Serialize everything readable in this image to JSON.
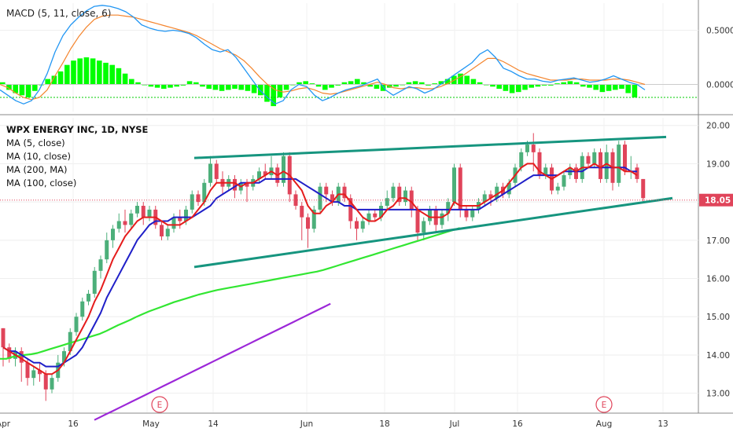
{
  "chart_data": [
    {
      "type": "bar",
      "panel": "macd",
      "legend": "MACD (5, 11, close, 6)",
      "ylim": [
        -0.25,
        0.75
      ],
      "yticks": [
        "0.5000",
        "0.0000"
      ],
      "ytick_values": [
        0.5,
        0.0
      ],
      "signal_level": -0.12,
      "histogram": [
        0.02,
        -0.05,
        -0.08,
        -0.1,
        -0.12,
        -0.06,
        0.0,
        0.05,
        0.08,
        0.12,
        0.18,
        0.22,
        0.24,
        0.25,
        0.24,
        0.22,
        0.2,
        0.18,
        0.15,
        0.1,
        0.05,
        0.02,
        0.0,
        -0.02,
        -0.03,
        -0.04,
        -0.03,
        -0.02,
        -0.01,
        0.03,
        0.02,
        -0.02,
        -0.04,
        -0.05,
        -0.06,
        -0.05,
        -0.04,
        -0.05,
        -0.06,
        -0.08,
        -0.1,
        -0.16,
        -0.2,
        -0.12,
        -0.05,
        0.0,
        0.02,
        0.03,
        0.01,
        -0.02,
        -0.05,
        -0.03,
        -0.01,
        0.02,
        0.03,
        0.05,
        0.02,
        -0.02,
        -0.04,
        -0.06,
        -0.03,
        -0.02,
        0.0,
        0.02,
        0.03,
        0.02,
        -0.01,
        0.01,
        0.03,
        0.05,
        0.08,
        0.1,
        0.08,
        0.05,
        0.02,
        0.0,
        -0.02,
        -0.04,
        -0.06,
        -0.08,
        -0.07,
        -0.05,
        -0.03,
        -0.02,
        -0.01,
        -0.01,
        0.01,
        0.02,
        0.03,
        0.02,
        -0.02,
        -0.03,
        -0.05,
        -0.07,
        -0.06,
        -0.05,
        -0.04,
        -0.08,
        -0.12
      ],
      "macd_line": [
        -0.05,
        -0.1,
        -0.15,
        -0.18,
        -0.15,
        -0.05,
        0.1,
        0.3,
        0.45,
        0.55,
        0.62,
        0.68,
        0.72,
        0.73,
        0.72,
        0.7,
        0.67,
        0.62,
        0.55,
        0.52,
        0.5,
        0.49,
        0.5,
        0.49,
        0.47,
        0.43,
        0.37,
        0.32,
        0.3,
        0.32,
        0.25,
        0.15,
        0.05,
        -0.05,
        -0.12,
        -0.18,
        -0.15,
        -0.05,
        0.0,
        -0.02,
        -0.1,
        -0.15,
        -0.12,
        -0.08,
        -0.05,
        -0.03,
        -0.01,
        0.02,
        0.05,
        -0.05,
        -0.1,
        -0.06,
        -0.02,
        -0.04,
        -0.08,
        -0.05,
        0.0,
        0.05,
        0.1,
        0.15,
        0.2,
        0.28,
        0.32,
        0.25,
        0.15,
        0.12,
        0.08,
        0.05,
        0.05,
        0.03,
        0.02,
        0.04,
        0.05,
        0.06,
        0.04,
        0.02,
        0.03,
        0.05,
        0.08,
        0.05,
        0.02,
        0.0,
        -0.05
      ],
      "signal_line": [
        0.0,
        -0.03,
        -0.08,
        -0.12,
        -0.14,
        -0.12,
        -0.05,
        0.08,
        0.2,
        0.33,
        0.44,
        0.53,
        0.6,
        0.63,
        0.64,
        0.64,
        0.63,
        0.62,
        0.6,
        0.58,
        0.56,
        0.54,
        0.52,
        0.5,
        0.48,
        0.45,
        0.41,
        0.37,
        0.33,
        0.3,
        0.27,
        0.22,
        0.15,
        0.07,
        0.0,
        -0.05,
        -0.07,
        -0.06,
        -0.04,
        -0.03,
        -0.05,
        -0.08,
        -0.09,
        -0.08,
        -0.06,
        -0.04,
        -0.02,
        0.0,
        0.02,
        0.0,
        -0.03,
        -0.04,
        -0.03,
        -0.03,
        -0.04,
        -0.04,
        -0.02,
        0.01,
        0.05,
        0.09,
        0.14,
        0.19,
        0.24,
        0.24,
        0.21,
        0.17,
        0.13,
        0.1,
        0.08,
        0.06,
        0.04,
        0.04,
        0.04,
        0.05,
        0.05,
        0.04,
        0.04,
        0.04,
        0.05,
        0.05,
        0.04,
        0.02,
        0.0
      ]
    },
    {
      "type": "candlestick",
      "panel": "price",
      "title": "WPX ENERGY INC, 1D, NYSE",
      "legend": [
        "MA (5, close)",
        "MA (10, close)",
        "MA (200, MA)",
        "MA (100, close)"
      ],
      "ylim": [
        12.5,
        20.2
      ],
      "yticks": [
        "20.00",
        "19.00",
        "18.00",
        "17.00",
        "16.00",
        "15.00",
        "14.00",
        "13.00"
      ],
      "ytick_values": [
        20,
        19,
        18,
        17,
        16,
        15,
        14,
        13
      ],
      "last_price": "18.05",
      "last_price_value": 18.05,
      "x_labels": [
        "Apr",
        "16",
        "May",
        "14",
        "Jun",
        "18",
        "Jul",
        "16",
        "Aug",
        "13"
      ],
      "events": [
        "E",
        "E"
      ],
      "candles": [
        [
          14.7,
          14.2,
          14.7,
          13.7
        ],
        [
          14.2,
          13.9,
          14.3,
          13.8
        ],
        [
          13.9,
          14.1,
          14.2,
          13.7
        ],
        [
          14.1,
          13.8,
          14.2,
          13.3
        ],
        [
          13.8,
          13.4,
          13.9,
          13.2
        ],
        [
          13.4,
          13.6,
          13.7,
          13.2
        ],
        [
          13.6,
          13.5,
          13.8,
          13.3
        ],
        [
          13.5,
          13.1,
          13.6,
          12.8
        ],
        [
          13.1,
          13.4,
          13.5,
          13.0
        ],
        [
          13.4,
          13.8,
          14.0,
          13.3
        ],
        [
          13.8,
          14.1,
          14.2,
          13.7
        ],
        [
          14.1,
          14.6,
          14.7,
          14.0
        ],
        [
          14.6,
          15.0,
          15.1,
          14.5
        ],
        [
          15.0,
          15.4,
          15.5,
          14.9
        ],
        [
          15.4,
          15.6,
          15.7,
          15.3
        ],
        [
          15.6,
          16.2,
          16.3,
          15.5
        ],
        [
          16.2,
          16.5,
          16.6,
          16.0
        ],
        [
          16.5,
          17.0,
          17.2,
          16.4
        ],
        [
          17.0,
          17.3,
          17.4,
          16.8
        ],
        [
          17.3,
          17.5,
          17.7,
          17.2
        ],
        [
          17.5,
          17.4,
          17.8,
          17.2
        ],
        [
          17.4,
          17.7,
          17.8,
          17.3
        ],
        [
          17.7,
          17.9,
          18.0,
          17.6
        ],
        [
          17.9,
          17.6,
          18.0,
          17.4
        ],
        [
          17.6,
          17.8,
          17.9,
          17.5
        ],
        [
          17.8,
          17.4,
          17.9,
          17.3
        ],
        [
          17.4,
          17.1,
          17.5,
          17.0
        ],
        [
          17.1,
          17.3,
          17.4,
          17.0
        ],
        [
          17.3,
          17.6,
          17.7,
          17.2
        ],
        [
          17.6,
          17.5,
          17.8,
          17.3
        ],
        [
          17.5,
          17.8,
          17.9,
          17.4
        ],
        [
          17.8,
          18.2,
          18.3,
          17.7
        ],
        [
          18.2,
          18.0,
          18.3,
          17.9
        ],
        [
          18.0,
          18.5,
          18.6,
          17.9
        ],
        [
          18.5,
          19.0,
          19.2,
          18.4
        ],
        [
          19.0,
          18.6,
          19.1,
          18.5
        ],
        [
          18.6,
          18.4,
          18.8,
          18.2
        ],
        [
          18.4,
          18.6,
          18.7,
          18.3
        ],
        [
          18.6,
          18.3,
          18.7,
          18.1
        ],
        [
          18.3,
          18.5,
          18.6,
          18.2
        ],
        [
          18.5,
          18.4,
          18.6,
          18.0
        ],
        [
          18.4,
          18.6,
          18.7,
          18.3
        ],
        [
          18.6,
          18.8,
          18.9,
          18.5
        ],
        [
          18.8,
          18.7,
          19.0,
          18.6
        ],
        [
          18.7,
          18.9,
          19.2,
          18.6
        ],
        [
          18.9,
          18.5,
          19.0,
          18.4
        ],
        [
          18.5,
          19.2,
          19.3,
          18.4
        ],
        [
          19.2,
          18.2,
          19.3,
          18.0
        ],
        [
          18.2,
          17.9,
          18.3,
          17.8
        ],
        [
          17.9,
          17.6,
          18.0,
          17.0
        ],
        [
          17.6,
          17.3,
          17.7,
          16.8
        ],
        [
          17.3,
          17.8,
          17.9,
          17.2
        ],
        [
          17.8,
          18.4,
          18.5,
          17.7
        ],
        [
          18.4,
          18.2,
          18.5,
          18.0
        ],
        [
          18.2,
          18.0,
          18.3,
          17.9
        ],
        [
          18.0,
          18.4,
          18.5,
          17.9
        ],
        [
          18.4,
          18.1,
          18.5,
          18.0
        ],
        [
          18.1,
          17.5,
          18.2,
          17.3
        ],
        [
          17.5,
          17.3,
          17.6,
          17.0
        ],
        [
          17.3,
          17.5,
          17.6,
          17.2
        ],
        [
          17.5,
          17.7,
          17.8,
          17.4
        ],
        [
          17.7,
          17.6,
          17.8,
          17.5
        ],
        [
          17.6,
          17.9,
          18.0,
          17.5
        ],
        [
          17.9,
          18.1,
          18.3,
          17.8
        ],
        [
          18.1,
          18.4,
          18.5,
          18.0
        ],
        [
          18.4,
          18.0,
          18.5,
          17.9
        ],
        [
          18.0,
          18.3,
          18.4,
          17.9
        ],
        [
          18.3,
          17.8,
          18.4,
          17.6
        ],
        [
          17.8,
          17.2,
          17.9,
          17.0
        ],
        [
          17.2,
          17.5,
          17.6,
          17.0
        ],
        [
          17.5,
          17.8,
          17.9,
          17.4
        ],
        [
          17.8,
          17.4,
          17.9,
          17.2
        ],
        [
          17.4,
          17.7,
          17.8,
          17.3
        ],
        [
          17.7,
          18.0,
          18.1,
          17.5
        ],
        [
          18.0,
          18.9,
          19.0,
          17.9
        ],
        [
          18.9,
          17.8,
          19.0,
          17.6
        ],
        [
          17.8,
          17.6,
          17.9,
          17.5
        ],
        [
          17.6,
          17.8,
          17.9,
          17.5
        ],
        [
          17.8,
          18.0,
          18.1,
          17.7
        ],
        [
          18.0,
          18.2,
          18.3,
          17.9
        ],
        [
          18.2,
          18.1,
          18.3,
          17.9
        ],
        [
          18.1,
          18.4,
          18.5,
          18.0
        ],
        [
          18.4,
          18.2,
          18.5,
          18.1
        ],
        [
          18.2,
          18.5,
          18.6,
          18.1
        ],
        [
          18.5,
          18.9,
          19.0,
          18.4
        ],
        [
          18.9,
          19.3,
          19.4,
          18.8
        ],
        [
          19.3,
          19.5,
          19.6,
          19.2
        ],
        [
          19.5,
          19.3,
          19.8,
          18.8
        ],
        [
          19.3,
          18.7,
          19.4,
          18.6
        ],
        [
          18.7,
          18.9,
          19.0,
          18.6
        ],
        [
          18.9,
          18.3,
          19.0,
          18.2
        ],
        [
          18.3,
          18.4,
          18.5,
          18.2
        ],
        [
          18.4,
          18.7,
          18.8,
          18.3
        ],
        [
          18.7,
          18.9,
          19.0,
          18.6
        ],
        [
          18.9,
          18.6,
          19.0,
          18.5
        ],
        [
          18.6,
          19.2,
          19.3,
          18.5
        ],
        [
          19.2,
          19.0,
          19.3,
          18.9
        ],
        [
          19.0,
          19.3,
          19.4,
          18.9
        ],
        [
          19.3,
          18.6,
          19.4,
          18.5
        ],
        [
          18.6,
          19.3,
          19.5,
          18.5
        ],
        [
          19.3,
          18.5,
          19.4,
          18.3
        ],
        [
          18.5,
          19.5,
          19.6,
          18.4
        ],
        [
          19.5,
          18.8,
          19.6,
          18.7
        ],
        [
          18.8,
          18.8,
          19.2,
          18.6
        ],
        [
          18.9,
          18.6,
          19.0,
          18.5
        ],
        [
          18.6,
          18.1,
          18.6,
          18.0
        ]
      ],
      "ma5": [
        14.2,
        14.1,
        14.0,
        13.9,
        13.8,
        13.7,
        13.6,
        13.5,
        13.5,
        13.6,
        13.8,
        14.1,
        14.4,
        14.7,
        15.0,
        15.4,
        15.7,
        16.1,
        16.5,
        16.8,
        17.1,
        17.3,
        17.5,
        17.6,
        17.6,
        17.6,
        17.5,
        17.4,
        17.4,
        17.4,
        17.5,
        17.6,
        17.8,
        18.0,
        18.3,
        18.5,
        18.5,
        18.5,
        18.5,
        18.4,
        18.5,
        18.5,
        18.6,
        18.7,
        18.8,
        18.7,
        18.8,
        18.7,
        18.5,
        18.3,
        17.9,
        17.7,
        17.7,
        17.9,
        18.0,
        18.2,
        18.2,
        18.0,
        17.8,
        17.6,
        17.5,
        17.5,
        17.6,
        17.8,
        17.9,
        18.1,
        18.1,
        18.0,
        17.8,
        17.7,
        17.6,
        17.6,
        17.6,
        17.7,
        18.0,
        17.9,
        17.9,
        17.9,
        17.9,
        18.0,
        18.1,
        18.2,
        18.3,
        18.5,
        18.7,
        18.9,
        19.0,
        19.0,
        18.8,
        18.7,
        18.6,
        18.7,
        18.8,
        18.9,
        18.8,
        18.9,
        18.9,
        19.0,
        18.9,
        19.0,
        18.9,
        18.9,
        18.8,
        18.8,
        18.7
      ],
      "ma10": [
        14.2,
        14.1,
        14.1,
        14.0,
        13.9,
        13.8,
        13.8,
        13.7,
        13.7,
        13.7,
        13.8,
        13.9,
        14.0,
        14.2,
        14.5,
        14.8,
        15.1,
        15.5,
        15.8,
        16.1,
        16.4,
        16.7,
        17.0,
        17.2,
        17.4,
        17.5,
        17.5,
        17.5,
        17.6,
        17.6,
        17.6,
        17.6,
        17.7,
        17.8,
        17.9,
        18.1,
        18.2,
        18.3,
        18.4,
        18.5,
        18.5,
        18.5,
        18.5,
        18.6,
        18.6,
        18.6,
        18.6,
        18.6,
        18.6,
        18.5,
        18.4,
        18.3,
        18.2,
        18.1,
        18.0,
        18.0,
        17.9,
        17.9,
        17.8,
        17.8,
        17.8,
        17.8,
        17.8,
        17.8,
        17.8,
        17.8,
        17.8,
        17.8,
        17.8,
        17.8,
        17.8,
        17.8,
        17.8,
        17.8,
        17.8,
        17.8,
        17.8,
        17.8,
        17.8,
        17.9,
        18.0,
        18.1,
        18.2,
        18.3,
        18.4,
        18.5,
        18.6,
        18.7,
        18.7,
        18.7,
        18.7,
        18.7,
        18.8,
        18.8,
        18.8,
        18.8,
        18.9,
        18.9,
        18.9,
        18.9,
        18.9,
        18.9,
        18.9,
        18.8,
        18.8
      ],
      "ma200": [
        13.9,
        13.9,
        13.95,
        13.98,
        14.0,
        14.02,
        14.05,
        14.1,
        14.15,
        14.2,
        14.25,
        14.3,
        14.35,
        14.4,
        14.45,
        14.5,
        14.55,
        14.62,
        14.7,
        14.78,
        14.85,
        14.92,
        15.0,
        15.07,
        15.14,
        15.2,
        15.26,
        15.32,
        15.38,
        15.43,
        15.48,
        15.53,
        15.58,
        15.62,
        15.66,
        15.7,
        15.73,
        15.76,
        15.79,
        15.82,
        15.85,
        15.88,
        15.91,
        15.94,
        15.97,
        16.0,
        16.03,
        16.06,
        16.09,
        16.12,
        16.15,
        16.18,
        16.22,
        16.27,
        16.32,
        16.37,
        16.42,
        16.47,
        16.52,
        16.57,
        16.62,
        16.67,
        16.72,
        16.77,
        16.82,
        16.87,
        16.92,
        16.97,
        17.02,
        17.07,
        17.12,
        17.17,
        17.22,
        17.27,
        17.32
      ],
      "ma100": [
        12.3,
        12.38,
        12.46,
        12.54,
        12.62,
        12.7,
        12.78,
        12.86,
        12.94,
        13.02,
        13.1,
        13.18,
        13.26,
        13.34,
        13.42,
        13.5,
        13.58,
        13.66,
        13.74,
        13.82,
        13.9,
        13.98,
        14.06,
        14.14,
        14.22,
        14.3,
        14.38,
        14.46,
        14.54,
        14.62,
        14.7,
        14.78,
        14.86,
        14.94,
        15.02,
        15.1,
        15.18,
        15.26,
        15.34
      ],
      "trendlines": [
        {
          "name": "upper",
          "start": [
            19.15,
            "May 10"
          ],
          "end": [
            19.7,
            "Aug 10"
          ]
        },
        {
          "name": "lower",
          "start": [
            16.3,
            "May 10"
          ],
          "end": [
            18.1,
            "Aug 11"
          ]
        }
      ]
    }
  ]
}
